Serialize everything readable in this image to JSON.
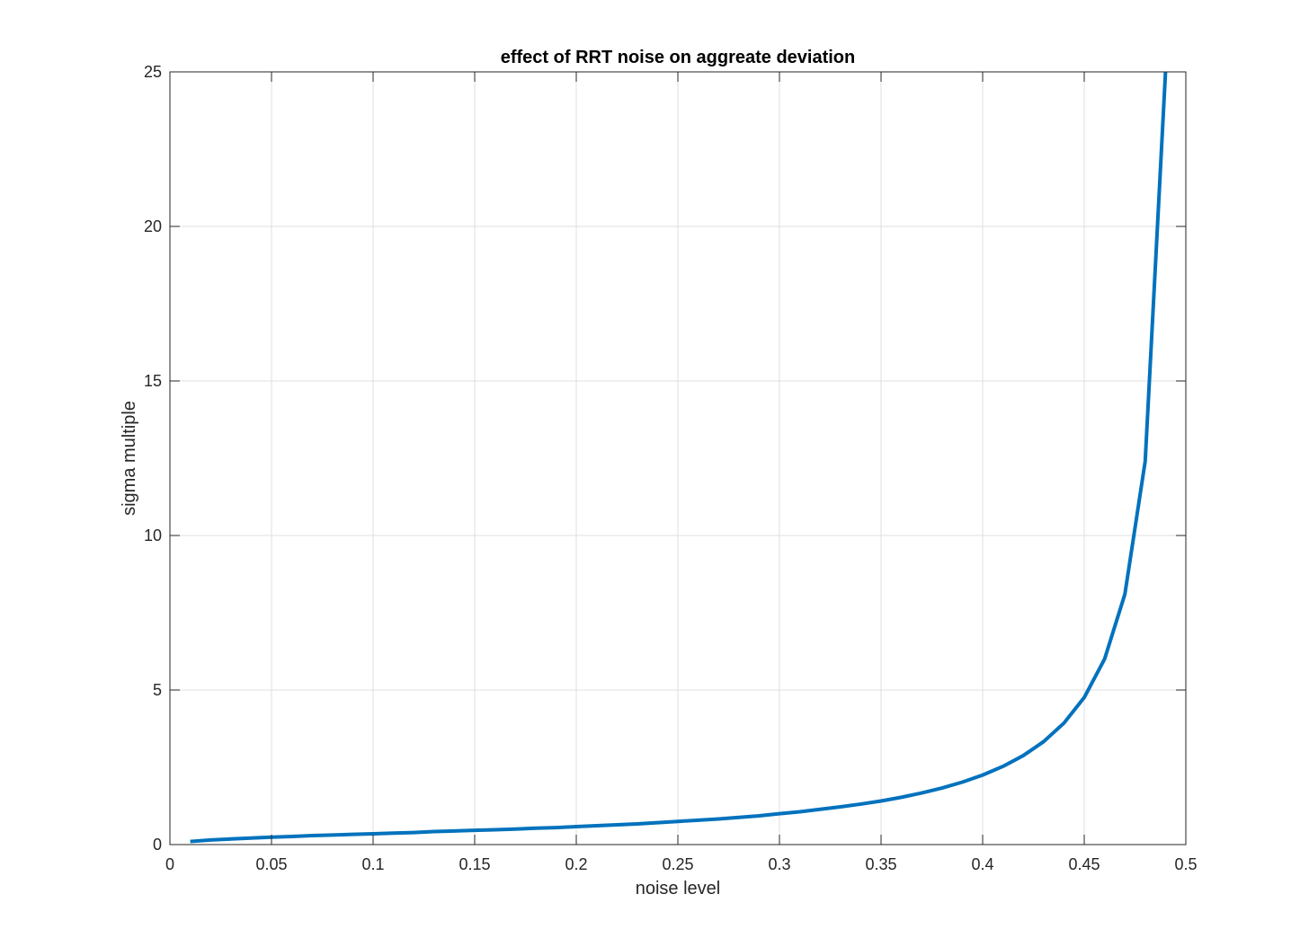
{
  "chart_data": {
    "type": "line",
    "title": "effect of RRT noise on aggreate deviation",
    "xlabel": "noise level",
    "ylabel": "sigma multiple",
    "xlim": [
      0,
      0.5
    ],
    "ylim": [
      0,
      25
    ],
    "xticks": [
      0,
      0.05,
      0.1,
      0.15,
      0.2,
      0.25,
      0.3,
      0.35,
      0.4,
      0.45,
      0.5
    ],
    "xtick_labels": [
      "0",
      "0.05",
      "0.1",
      "0.15",
      "0.2",
      "0.25",
      "0.3",
      "0.35",
      "0.4",
      "0.45",
      "0.5"
    ],
    "yticks": [
      0,
      5,
      10,
      15,
      20,
      25
    ],
    "ytick_labels": [
      "0",
      "5",
      "10",
      "15",
      "20",
      "25"
    ],
    "grid": true,
    "box": true,
    "series": [
      {
        "color": "#0072bd",
        "x": [
          0.01,
          0.02,
          0.03,
          0.04,
          0.05,
          0.06,
          0.07,
          0.08,
          0.09,
          0.1,
          0.11,
          0.12,
          0.13,
          0.14,
          0.15,
          0.16,
          0.17,
          0.18,
          0.19,
          0.2,
          0.21,
          0.22,
          0.23,
          0.24,
          0.25,
          0.26,
          0.27,
          0.28,
          0.29,
          0.3,
          0.31,
          0.32,
          0.33,
          0.34,
          0.35,
          0.36,
          0.37,
          0.38,
          0.39,
          0.4,
          0.41,
          0.42,
          0.43,
          0.44,
          0.45,
          0.46,
          0.47,
          0.48,
          0.49
        ],
        "y": [
          0.1,
          0.15,
          0.18,
          0.21,
          0.24,
          0.26,
          0.29,
          0.31,
          0.33,
          0.35,
          0.37,
          0.39,
          0.42,
          0.44,
          0.46,
          0.48,
          0.5,
          0.53,
          0.55,
          0.58,
          0.61,
          0.64,
          0.67,
          0.71,
          0.75,
          0.79,
          0.83,
          0.88,
          0.93,
          1.0,
          1.06,
          1.14,
          1.22,
          1.31,
          1.41,
          1.53,
          1.67,
          1.83,
          2.02,
          2.25,
          2.53,
          2.88,
          3.33,
          3.93,
          4.76,
          6.0,
          8.1,
          12.4,
          25.0
        ]
      }
    ]
  }
}
